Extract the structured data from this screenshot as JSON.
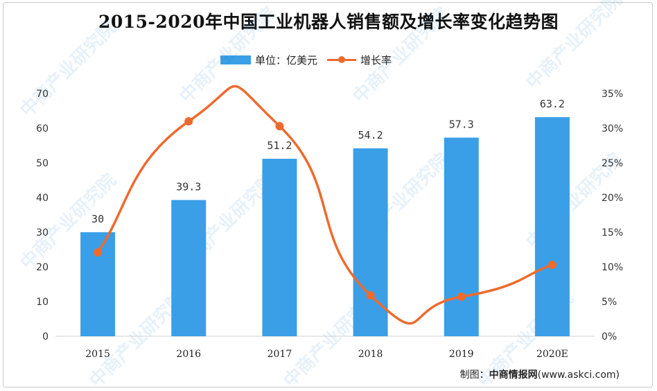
{
  "title": "2015-2020年中国工业机器人销售额及增长率变化趋势图",
  "legend": {
    "bar_label": "单位：亿美元",
    "line_label": "增长率"
  },
  "source": {
    "prefix": "制图：",
    "org": "中商情报网",
    "url": "(www.askci.com)"
  },
  "watermark": "中商产业研究院",
  "colors": {
    "bar": "#3a9fe6",
    "line": "#ee6a2c"
  },
  "chart_data": {
    "type": "bar+line",
    "title": "2015-2020年中国工业机器人销售额及增长率变化趋势图",
    "categories": [
      "2015",
      "2016",
      "2017",
      "2018",
      "2019",
      "2020E"
    ],
    "series": [
      {
        "name": "单位：亿美元",
        "type": "bar",
        "axis": "left",
        "values": [
          30,
          39.3,
          51.2,
          54.2,
          57.3,
          63.2
        ],
        "labels": [
          "30",
          "39.3",
          "51.2",
          "54.2",
          "57.3",
          "63.2"
        ]
      },
      {
        "name": "增长率",
        "type": "line",
        "axis": "right",
        "values": [
          12.1,
          31.0,
          30.3,
          5.9,
          5.7,
          10.3
        ]
      }
    ],
    "y_left": {
      "ylim": [
        0,
        70
      ],
      "ticks": [
        "0",
        "10",
        "20",
        "30",
        "40",
        "50",
        "60",
        "70"
      ]
    },
    "y_right": {
      "ylim": [
        0,
        35
      ],
      "ticks": [
        "0%",
        "5%",
        "10%",
        "15%",
        "20%",
        "25%",
        "30%",
        "35%"
      ]
    },
    "grid": false,
    "legend_position": "top-center"
  }
}
